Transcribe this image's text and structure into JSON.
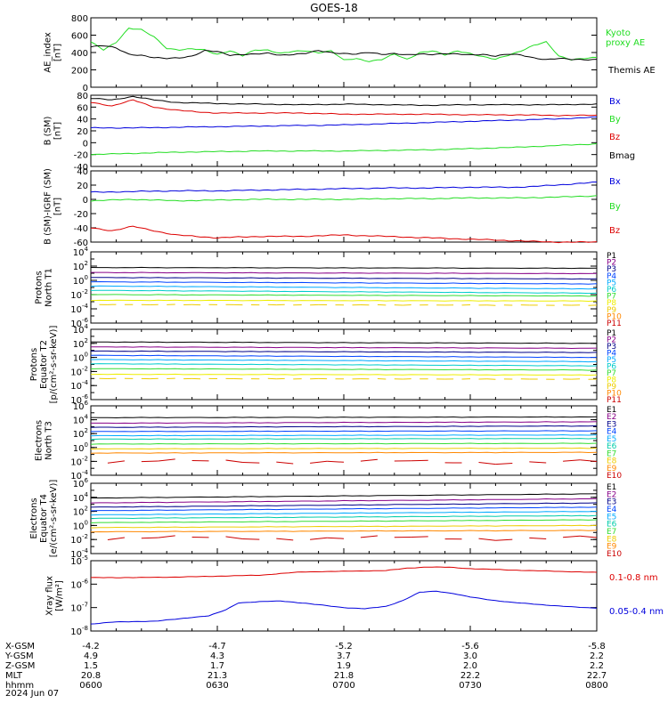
{
  "title": "GOES-18",
  "colors": {
    "black": "#000000",
    "red": "#dd0000",
    "green": "#22dd22",
    "blue": "#0000dd",
    "purple": "#880088",
    "navy": "#000088",
    "royal": "#0044ff",
    "sky": "#00aaff",
    "cyan": "#00cccc",
    "teal": "#00ccaa",
    "lime": "#33dd33",
    "yellow": "#eeee00",
    "gold": "#eecc00",
    "orange": "#ff8800",
    "dkred": "#cc0000",
    "xray_red": "#dd0000",
    "xray_blue": "#0000dd"
  },
  "chart_data": [
    {
      "type": "line",
      "panel": "ae",
      "ylabel": "AE_index [nT]",
      "ylim": [
        0,
        800
      ],
      "yticks": [
        "0",
        "200",
        "400",
        "600",
        "800"
      ],
      "series": [
        {
          "name": "Kyoto proxy AE",
          "color_key": "green",
          "legend_text": [
            "Kyoto",
            "proxy AE"
          ],
          "x": [
            0,
            3,
            6,
            9,
            12,
            15,
            18,
            21,
            24,
            27,
            30,
            33,
            36,
            39,
            42,
            45,
            48,
            51,
            54,
            57,
            60,
            63,
            66,
            69,
            72,
            75,
            78,
            81,
            84,
            87,
            90,
            93,
            96,
            99,
            102,
            105,
            108,
            111,
            114,
            117,
            120
          ],
          "values": [
            520,
            430,
            520,
            680,
            660,
            580,
            450,
            430,
            440,
            430,
            380,
            420,
            360,
            430,
            430,
            390,
            410,
            420,
            400,
            420,
            310,
            330,
            300,
            320,
            380,
            320,
            400,
            420,
            370,
            420,
            390,
            350,
            320,
            370,
            420,
            480,
            520,
            360,
            320,
            330,
            340
          ]
        },
        {
          "name": "Themis AE",
          "color_key": "black",
          "legend_text": [
            "Themis AE"
          ],
          "x": [
            0,
            3,
            6,
            9,
            12,
            15,
            18,
            21,
            24,
            27,
            30,
            33,
            36,
            39,
            42,
            45,
            48,
            51,
            54,
            57,
            60,
            63,
            66,
            69,
            72,
            75,
            78,
            81,
            84,
            87,
            90,
            93,
            96,
            99,
            102,
            105,
            108,
            111,
            114,
            117,
            120
          ],
          "values": [
            470,
            480,
            450,
            380,
            370,
            340,
            330,
            340,
            360,
            420,
            410,
            370,
            380,
            380,
            390,
            370,
            380,
            390,
            420,
            400,
            390,
            380,
            400,
            380,
            390,
            370,
            380,
            380,
            390,
            380,
            370,
            380,
            360,
            380,
            370,
            340,
            320,
            330,
            320,
            320,
            320
          ]
        }
      ]
    },
    {
      "type": "line",
      "panel": "bsm",
      "ylabel": "B (SM) [nT]",
      "ylim": [
        -40,
        80
      ],
      "yticks": [
        "80",
        "60",
        "40",
        "20",
        "0",
        "-20",
        "-40"
      ],
      "series": [
        {
          "name": "Bx",
          "color_key": "blue",
          "x": [
            0,
            10,
            20,
            30,
            40,
            50,
            60,
            70,
            80,
            90,
            100,
            110,
            120
          ],
          "values": [
            25,
            25,
            26,
            27,
            28,
            29,
            30,
            32,
            34,
            36,
            38,
            40,
            43
          ]
        },
        {
          "name": "By",
          "color_key": "green",
          "x": [
            0,
            10,
            20,
            30,
            40,
            50,
            60,
            70,
            80,
            90,
            100,
            110,
            120
          ],
          "values": [
            -20,
            -18,
            -16,
            -15,
            -14,
            -14,
            -14,
            -13,
            -12,
            -10,
            -8,
            -5,
            -2
          ]
        },
        {
          "name": "Bz",
          "color_key": "red",
          "x": [
            0,
            5,
            10,
            15,
            20,
            25,
            30,
            40,
            50,
            60,
            70,
            80,
            90,
            100,
            110,
            120
          ],
          "values": [
            68,
            62,
            72,
            60,
            55,
            52,
            50,
            50,
            50,
            48,
            48,
            48,
            47,
            47,
            46,
            46
          ]
        },
        {
          "name": "Bmag",
          "color_key": "black",
          "x": [
            0,
            5,
            10,
            15,
            20,
            30,
            40,
            50,
            60,
            70,
            80,
            90,
            100,
            110,
            120
          ],
          "values": [
            75,
            72,
            78,
            72,
            68,
            66,
            65,
            64,
            65,
            64,
            63,
            64,
            64,
            64,
            65
          ]
        }
      ]
    },
    {
      "type": "line",
      "panel": "bigrf",
      "ylabel": "B (SM)-IGRF (SM) [nT]",
      "ylim": [
        -60,
        40
      ],
      "yticks": [
        "40",
        "20",
        "0",
        "-20",
        "-40",
        "-60"
      ],
      "series": [
        {
          "name": "Bx",
          "color_key": "blue",
          "x": [
            0,
            10,
            20,
            30,
            40,
            50,
            60,
            70,
            80,
            90,
            100,
            105,
            110,
            115,
            120
          ],
          "values": [
            10,
            11,
            12,
            12,
            13,
            14,
            15,
            16,
            16,
            17,
            17,
            18,
            20,
            22,
            24
          ]
        },
        {
          "name": "By",
          "color_key": "green",
          "x": [
            0,
            10,
            20,
            30,
            40,
            50,
            60,
            70,
            80,
            90,
            100,
            110,
            120
          ],
          "values": [
            -2,
            0,
            -2,
            -1,
            0,
            0,
            0,
            1,
            1,
            2,
            2,
            3,
            5
          ]
        },
        {
          "name": "Bz",
          "color_key": "red",
          "x": [
            0,
            5,
            10,
            15,
            20,
            25,
            30,
            40,
            50,
            60,
            70,
            80,
            90,
            100,
            110,
            120
          ],
          "values": [
            -40,
            -44,
            -38,
            -44,
            -50,
            -52,
            -54,
            -52,
            -52,
            -50,
            -52,
            -54,
            -56,
            -58,
            -60,
            -60
          ]
        }
      ]
    },
    {
      "type": "line",
      "panel": "prot_north",
      "ylabel": "Protons North T1",
      "log": true,
      "ylim_exp": [
        -6,
        4
      ],
      "yticks_exp": [
        4,
        2,
        0,
        -2,
        -4,
        -6
      ],
      "series": [
        {
          "name": "P1",
          "color_key": "black",
          "values": [
            1.8,
            1.7
          ]
        },
        {
          "name": "P2",
          "color_key": "purple",
          "values": [
            1.1,
            0.95
          ]
        },
        {
          "name": "P3",
          "color_key": "navy",
          "values": [
            0.4,
            0.2
          ]
        },
        {
          "name": "P4",
          "color_key": "royal",
          "values": [
            -0.2,
            -0.5
          ]
        },
        {
          "name": "P5",
          "color_key": "sky",
          "values": [
            -0.8,
            -1.2
          ]
        },
        {
          "name": "P6",
          "color_key": "cyan",
          "values": [
            -1.4,
            -1.8
          ]
        },
        {
          "name": "P7",
          "color_key": "lime",
          "values": [
            -2.0,
            -2.2
          ]
        },
        {
          "name": "P8",
          "color_key": "yellow",
          "values": [
            -2.8,
            -2.9
          ]
        },
        {
          "name": "P9",
          "color_key": "gold",
          "values": [
            -3.4,
            -3.5
          ]
        },
        {
          "name": "P10",
          "color_key": "orange",
          "values": []
        },
        {
          "name": "P11",
          "color_key": "dkred",
          "values": []
        }
      ]
    },
    {
      "type": "line",
      "panel": "prot_eq",
      "ylabel": "Protons Equator T2 [p/(cm²-s-sr-keV)]",
      "log": true,
      "ylim_exp": [
        -6,
        4
      ],
      "yticks_exp": [
        4,
        2,
        0,
        -2,
        -4,
        -6
      ],
      "series": [
        {
          "name": "P1",
          "color_key": "black",
          "values": [
            2.2,
            2.0
          ]
        },
        {
          "name": "P2",
          "color_key": "purple",
          "values": [
            1.5,
            1.3
          ]
        },
        {
          "name": "P3",
          "color_key": "navy",
          "values": [
            0.9,
            0.7
          ]
        },
        {
          "name": "P4",
          "color_key": "royal",
          "values": [
            0.3,
            0.0
          ]
        },
        {
          "name": "P5",
          "color_key": "sky",
          "values": [
            -0.3,
            -0.6
          ]
        },
        {
          "name": "P6",
          "color_key": "cyan",
          "values": [
            -0.9,
            -1.2
          ]
        },
        {
          "name": "P7",
          "color_key": "lime",
          "values": [
            -1.6,
            -1.8
          ]
        },
        {
          "name": "P8",
          "color_key": "yellow",
          "values": [
            -2.4,
            -2.5
          ]
        },
        {
          "name": "P9",
          "color_key": "gold",
          "values": [
            -3.0,
            -3.1
          ]
        },
        {
          "name": "P10",
          "color_key": "orange",
          "values": []
        },
        {
          "name": "P11",
          "color_key": "dkred",
          "values": []
        }
      ]
    },
    {
      "type": "line",
      "panel": "elec_north",
      "ylabel": "Electrons North T3",
      "log": true,
      "ylim_exp": [
        -4,
        6
      ],
      "yticks_exp": [
        6,
        4,
        2,
        0,
        -2,
        -4
      ],
      "series": [
        {
          "name": "E1",
          "color_key": "black",
          "values": [
            4.3,
            4.4
          ]
        },
        {
          "name": "E2",
          "color_key": "purple",
          "values": [
            3.5,
            3.7
          ]
        },
        {
          "name": "E3",
          "color_key": "navy",
          "values": [
            2.9,
            3.1
          ]
        },
        {
          "name": "E4",
          "color_key": "royal",
          "values": [
            2.3,
            2.4
          ]
        },
        {
          "name": "E5",
          "color_key": "sky",
          "values": [
            1.7,
            1.8
          ]
        },
        {
          "name": "E6",
          "color_key": "teal",
          "values": [
            1.2,
            1.3
          ]
        },
        {
          "name": "E7",
          "color_key": "lime",
          "values": [
            0.5,
            0.6
          ]
        },
        {
          "name": "E8",
          "color_key": "gold",
          "values": [
            -0.2,
            -0.1
          ]
        },
        {
          "name": "E9",
          "color_key": "orange",
          "values": [
            -0.8,
            -0.7
          ]
        },
        {
          "name": "E10",
          "color_key": "dkred",
          "values": [
            -2.0,
            -2.1
          ]
        }
      ]
    },
    {
      "type": "line",
      "panel": "elec_eq",
      "ylabel": "Electrons Equator T4 [e/(cm²-s-sr-keV)]",
      "log": true,
      "ylim_exp": [
        -4,
        6
      ],
      "yticks_exp": [
        6,
        4,
        2,
        0,
        -2,
        -4
      ],
      "series": [
        {
          "name": "E1",
          "color_key": "black",
          "values": [
            3.9,
            4.5
          ]
        },
        {
          "name": "E2",
          "color_key": "purple",
          "values": [
            3.2,
            3.8
          ]
        },
        {
          "name": "E3",
          "color_key": "navy",
          "values": [
            2.6,
            3.2
          ]
        },
        {
          "name": "E4",
          "color_key": "royal",
          "values": [
            2.1,
            2.6
          ]
        },
        {
          "name": "E5",
          "color_key": "sky",
          "values": [
            1.5,
            2.0
          ]
        },
        {
          "name": "E6",
          "color_key": "teal",
          "values": [
            1.0,
            1.4
          ]
        },
        {
          "name": "E7",
          "color_key": "lime",
          "values": [
            0.4,
            0.8
          ]
        },
        {
          "name": "E8",
          "color_key": "gold",
          "values": [
            -0.3,
            0.0
          ]
        },
        {
          "name": "E9",
          "color_key": "orange",
          "values": [
            -0.9,
            -0.7
          ]
        },
        {
          "name": "E10",
          "color_key": "dkred",
          "values": [
            -1.8,
            -1.8
          ]
        }
      ]
    },
    {
      "type": "line",
      "panel": "xray",
      "ylabel": "Xray flux [W/m²]",
      "log": true,
      "ylim_exp": [
        -8,
        -5
      ],
      "yticks_exp": [
        -5,
        -6,
        -7,
        -8
      ],
      "series": [
        {
          "name": "0.1-0.8 nm",
          "color_key": "xray_red",
          "x": [
            0,
            10,
            20,
            30,
            40,
            50,
            60,
            70,
            75,
            80,
            85,
            90,
            100,
            110,
            120
          ],
          "values": [
            -5.72,
            -5.72,
            -5.7,
            -5.66,
            -5.62,
            -5.48,
            -5.45,
            -5.42,
            -5.32,
            -5.27,
            -5.28,
            -5.34,
            -5.4,
            -5.45,
            -5.5
          ]
        },
        {
          "name": "0.05-0.4 nm",
          "color_key": "xray_blue",
          "x": [
            0,
            5,
            10,
            15,
            20,
            25,
            28,
            32,
            35,
            40,
            45,
            50,
            55,
            60,
            65,
            70,
            74,
            78,
            82,
            86,
            90,
            95,
            100,
            105,
            110,
            115,
            120
          ],
          "values": [
            -7.7,
            -7.62,
            -7.6,
            -7.58,
            -7.5,
            -7.4,
            -7.35,
            -7.1,
            -6.8,
            -6.75,
            -6.72,
            -6.8,
            -6.9,
            -7.0,
            -7.05,
            -6.95,
            -6.7,
            -6.35,
            -6.3,
            -6.4,
            -6.55,
            -6.68,
            -6.78,
            -6.85,
            -6.92,
            -6.98,
            -7.02
          ]
        }
      ]
    }
  ],
  "xaxis": {
    "row_labels": [
      "X-GSM",
      "Y-GSM",
      "Z-GSM",
      "MLT",
      "hhmm",
      "2024 Jun 07"
    ],
    "columns": [
      {
        "x": "-4.2",
        "y": "4.9",
        "z": "1.5",
        "mlt": "20.8",
        "hhmm": "0600"
      },
      {
        "x": "-4.7",
        "y": "4.3",
        "z": "1.7",
        "mlt": "21.3",
        "hhmm": "0630"
      },
      {
        "x": "-5.2",
        "y": "3.7",
        "z": "1.9",
        "mlt": "21.8",
        "hhmm": "0700"
      },
      {
        "x": "-5.6",
        "y": "3.0",
        "z": "2.0",
        "mlt": "22.2",
        "hhmm": "0730"
      },
      {
        "x": "-5.8",
        "y": "2.2",
        "z": "2.2",
        "mlt": "22.7",
        "hhmm": "0800"
      }
    ]
  }
}
